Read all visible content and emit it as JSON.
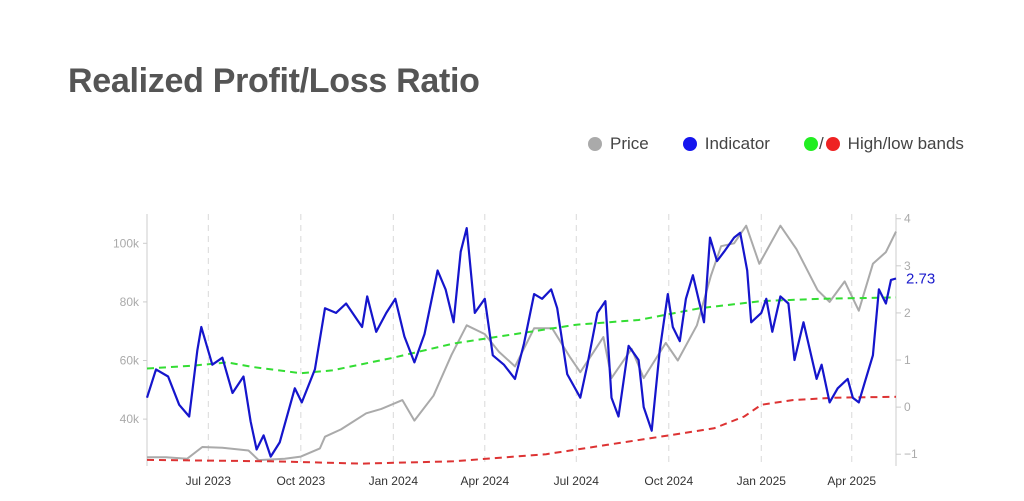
{
  "title": "Realized Profit/Loss Ratio",
  "legend": {
    "price_label": "Price",
    "indicator_label": "Indicator",
    "slash": "/",
    "bands_label": "High/low bands"
  },
  "colors": {
    "price": "#aaaaaa",
    "indicator": "#1515cc",
    "high_band": "#33dd33",
    "low_band": "#dd3333",
    "title": "#555555"
  },
  "chart_data": {
    "type": "line",
    "title": "Realized Profit/Loss Ratio",
    "x_ticks": [
      "Jul 2023",
      "Oct 2023",
      "Jan 2024",
      "Apr 2024",
      "Jul 2024",
      "Oct 2024",
      "Jan 2025",
      "Apr 2025"
    ],
    "x_range": [
      "2023-05-01",
      "2025-05-15"
    ],
    "left_axis": {
      "label": "",
      "ticks": [
        "40k",
        "60k",
        "80k",
        "100k"
      ],
      "ylim": [
        24000,
        110000
      ]
    },
    "right_axis": {
      "label": "",
      "ticks": [
        "−1",
        "0",
        "1",
        "2",
        "3",
        "4"
      ],
      "ylim": [
        -1.25,
        4.1
      ]
    },
    "last_value_label": "2.73",
    "grid": "vertical dashed at x ticks",
    "legend_position": "top-right",
    "series": [
      {
        "name": "Price",
        "axis": "left",
        "points": [
          [
            "2023-05-01",
            27000
          ],
          [
            "2023-05-20",
            27000
          ],
          [
            "2023-06-10",
            26500
          ],
          [
            "2023-06-25",
            30500
          ],
          [
            "2023-07-15",
            30200
          ],
          [
            "2023-08-10",
            29300
          ],
          [
            "2023-08-20",
            26000
          ],
          [
            "2023-09-15",
            26500
          ],
          [
            "2023-10-01",
            27200
          ],
          [
            "2023-10-20",
            30000
          ],
          [
            "2023-10-25",
            34000
          ],
          [
            "2023-11-10",
            36500
          ],
          [
            "2023-12-05",
            42000
          ],
          [
            "2023-12-20",
            43500
          ],
          [
            "2024-01-10",
            46500
          ],
          [
            "2024-01-22",
            39500
          ],
          [
            "2024-02-10",
            48000
          ],
          [
            "2024-02-28",
            62000
          ],
          [
            "2024-03-14",
            72000
          ],
          [
            "2024-04-01",
            69000
          ],
          [
            "2024-04-15",
            63000
          ],
          [
            "2024-05-01",
            58000
          ],
          [
            "2024-05-20",
            71000
          ],
          [
            "2024-06-07",
            71000
          ],
          [
            "2024-06-25",
            61000
          ],
          [
            "2024-07-05",
            56000
          ],
          [
            "2024-07-28",
            68000
          ],
          [
            "2024-08-05",
            54000
          ],
          [
            "2024-08-25",
            64000
          ],
          [
            "2024-09-06",
            54000
          ],
          [
            "2024-09-28",
            66000
          ],
          [
            "2024-10-10",
            60000
          ],
          [
            "2024-10-29",
            72000
          ],
          [
            "2024-11-12",
            89000
          ],
          [
            "2024-11-22",
            99000
          ],
          [
            "2024-12-05",
            100000
          ],
          [
            "2024-12-17",
            106000
          ],
          [
            "2024-12-30",
            93000
          ],
          [
            "2025-01-20",
            106000
          ],
          [
            "2025-02-05",
            98000
          ],
          [
            "2025-02-26",
            84000
          ],
          [
            "2025-03-10",
            80000
          ],
          [
            "2025-03-25",
            87000
          ],
          [
            "2025-04-08",
            77000
          ],
          [
            "2025-04-22",
            93000
          ],
          [
            "2025-05-05",
            97000
          ],
          [
            "2025-05-15",
            104000
          ]
        ]
      },
      {
        "name": "Indicator",
        "axis": "right",
        "points": [
          [
            "2023-05-01",
            0.2
          ],
          [
            "2023-05-10",
            0.8
          ],
          [
            "2023-05-22",
            0.65
          ],
          [
            "2023-06-02",
            0.05
          ],
          [
            "2023-06-12",
            -0.2
          ],
          [
            "2023-06-20",
            1.2
          ],
          [
            "2023-06-24",
            1.7
          ],
          [
            "2023-07-05",
            0.9
          ],
          [
            "2023-07-15",
            1.05
          ],
          [
            "2023-07-25",
            0.3
          ],
          [
            "2023-08-05",
            0.65
          ],
          [
            "2023-08-12",
            -0.3
          ],
          [
            "2023-08-18",
            -0.9
          ],
          [
            "2023-08-25",
            -0.6
          ],
          [
            "2023-09-01",
            -1.05
          ],
          [
            "2023-09-10",
            -0.75
          ],
          [
            "2023-09-25",
            0.4
          ],
          [
            "2023-10-02",
            0.1
          ],
          [
            "2023-10-15",
            0.8
          ],
          [
            "2023-10-25",
            2.1
          ],
          [
            "2023-11-05",
            2.0
          ],
          [
            "2023-11-15",
            2.2
          ],
          [
            "2023-12-01",
            1.7
          ],
          [
            "2023-12-06",
            2.35
          ],
          [
            "2023-12-15",
            1.6
          ],
          [
            "2023-12-25",
            2.0
          ],
          [
            "2024-01-03",
            2.3
          ],
          [
            "2024-01-12",
            1.5
          ],
          [
            "2024-01-22",
            0.95
          ],
          [
            "2024-02-01",
            1.55
          ],
          [
            "2024-02-14",
            2.9
          ],
          [
            "2024-02-22",
            2.5
          ],
          [
            "2024-03-01",
            1.8
          ],
          [
            "2024-03-08",
            3.3
          ],
          [
            "2024-03-14",
            3.8
          ],
          [
            "2024-03-22",
            2.0
          ],
          [
            "2024-04-01",
            2.3
          ],
          [
            "2024-04-09",
            1.1
          ],
          [
            "2024-04-20",
            0.9
          ],
          [
            "2024-05-01",
            0.6
          ],
          [
            "2024-05-10",
            1.35
          ],
          [
            "2024-05-20",
            2.4
          ],
          [
            "2024-05-28",
            2.3
          ],
          [
            "2024-06-06",
            2.5
          ],
          [
            "2024-06-12",
            2.1
          ],
          [
            "2024-06-22",
            0.7
          ],
          [
            "2024-07-05",
            0.2
          ],
          [
            "2024-07-12",
            0.9
          ],
          [
            "2024-07-22",
            2.0
          ],
          [
            "2024-07-30",
            2.25
          ],
          [
            "2024-08-05",
            0.2
          ],
          [
            "2024-08-12",
            -0.2
          ],
          [
            "2024-08-22",
            1.3
          ],
          [
            "2024-09-01",
            1.0
          ],
          [
            "2024-09-06",
            0.0
          ],
          [
            "2024-09-14",
            -0.5
          ],
          [
            "2024-09-22",
            1.2
          ],
          [
            "2024-09-30",
            2.4
          ],
          [
            "2024-10-05",
            1.7
          ],
          [
            "2024-10-12",
            1.4
          ],
          [
            "2024-10-18",
            2.3
          ],
          [
            "2024-10-25",
            2.8
          ],
          [
            "2024-11-05",
            1.8
          ],
          [
            "2024-11-11",
            3.6
          ],
          [
            "2024-11-18",
            3.1
          ],
          [
            "2024-11-25",
            3.3
          ],
          [
            "2024-12-05",
            3.6
          ],
          [
            "2024-12-11",
            3.7
          ],
          [
            "2024-12-18",
            2.9
          ],
          [
            "2024-12-22",
            1.8
          ],
          [
            "2025-01-01",
            2.0
          ],
          [
            "2025-01-06",
            2.3
          ],
          [
            "2025-01-12",
            1.6
          ],
          [
            "2025-01-20",
            2.35
          ],
          [
            "2025-01-28",
            2.2
          ],
          [
            "2025-02-03",
            1.0
          ],
          [
            "2025-02-12",
            1.8
          ],
          [
            "2025-02-25",
            0.6
          ],
          [
            "2025-03-02",
            0.9
          ],
          [
            "2025-03-10",
            0.1
          ],
          [
            "2025-03-18",
            0.4
          ],
          [
            "2025-03-28",
            0.6
          ],
          [
            "2025-04-02",
            0.2
          ],
          [
            "2025-04-08",
            0.1
          ],
          [
            "2025-04-15",
            0.6
          ],
          [
            "2025-04-22",
            1.1
          ],
          [
            "2025-04-28",
            2.5
          ],
          [
            "2025-05-05",
            2.2
          ],
          [
            "2025-05-10",
            2.7
          ],
          [
            "2025-05-15",
            2.73
          ]
        ]
      },
      {
        "name": "High band",
        "axis": "right",
        "points": [
          [
            "2023-05-01",
            0.82
          ],
          [
            "2023-06-15",
            0.88
          ],
          [
            "2023-07-20",
            0.95
          ],
          [
            "2023-08-15",
            0.85
          ],
          [
            "2023-10-01",
            0.72
          ],
          [
            "2023-11-01",
            0.78
          ],
          [
            "2024-01-01",
            1.05
          ],
          [
            "2024-03-01",
            1.35
          ],
          [
            "2024-05-01",
            1.55
          ],
          [
            "2024-07-01",
            1.75
          ],
          [
            "2024-09-01",
            1.85
          ],
          [
            "2024-11-01",
            2.1
          ],
          [
            "2025-01-01",
            2.25
          ],
          [
            "2025-03-01",
            2.3
          ],
          [
            "2025-05-15",
            2.33
          ]
        ]
      },
      {
        "name": "Low band",
        "axis": "right",
        "points": [
          [
            "2023-05-01",
            -1.12
          ],
          [
            "2023-09-01",
            -1.15
          ],
          [
            "2023-12-01",
            -1.2
          ],
          [
            "2024-03-01",
            -1.15
          ],
          [
            "2024-06-01",
            -1.0
          ],
          [
            "2024-08-01",
            -0.8
          ],
          [
            "2024-10-01",
            -0.6
          ],
          [
            "2024-11-15",
            -0.45
          ],
          [
            "2024-12-15",
            -0.2
          ],
          [
            "2025-01-01",
            0.05
          ],
          [
            "2025-02-01",
            0.15
          ],
          [
            "2025-03-15",
            0.2
          ],
          [
            "2025-05-15",
            0.22
          ]
        ]
      }
    ]
  }
}
